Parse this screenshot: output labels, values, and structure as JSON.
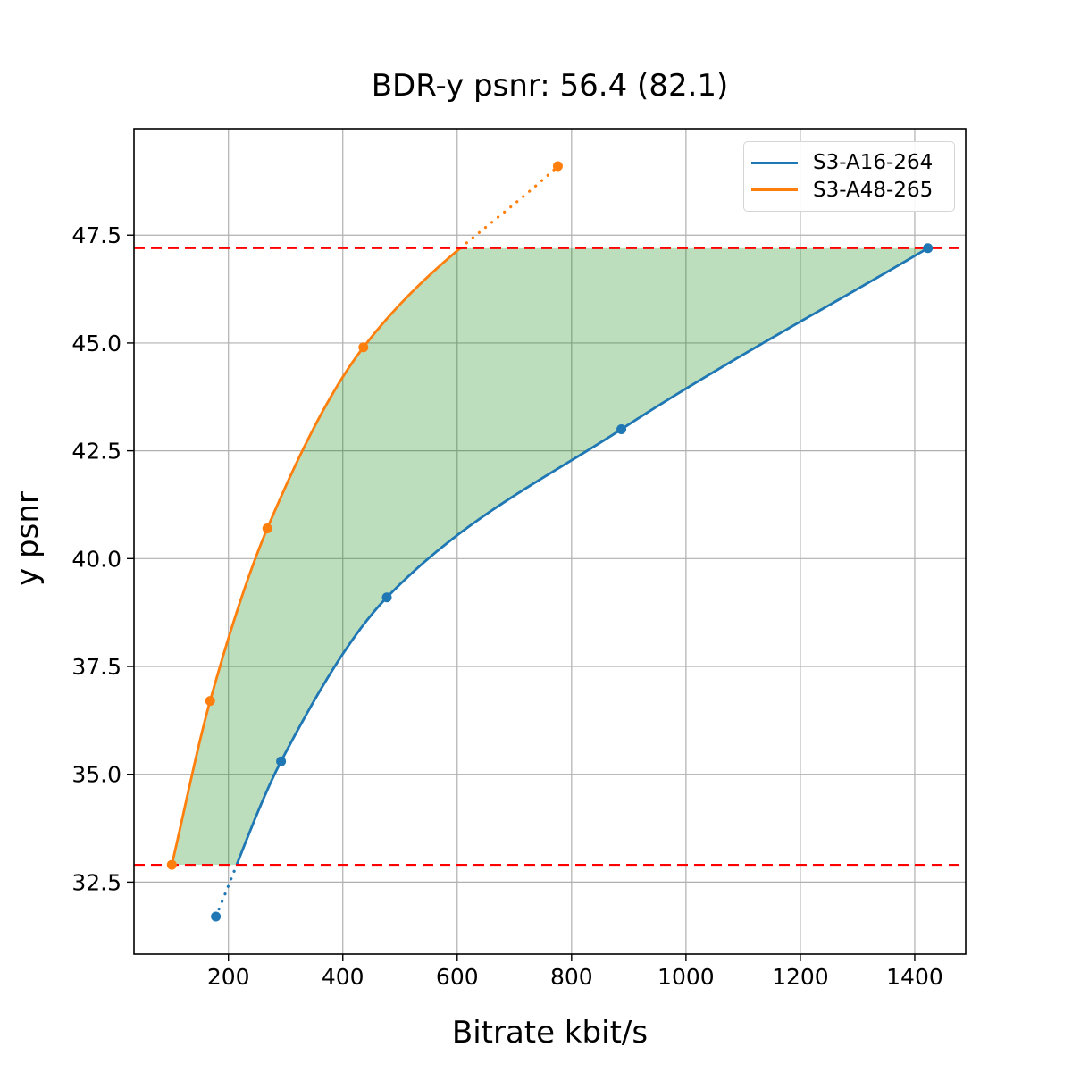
{
  "figure": {
    "background": "#ffffff"
  },
  "chart_data": {
    "type": "line",
    "title": "BDR-y psnr: 56.4 (82.1)",
    "xlabel": "Bitrate kbit/s",
    "ylabel": "y psnr",
    "xlim": [
      34.9,
      1489.1
    ],
    "ylim": [
      30.83,
      49.97
    ],
    "x_ticks": [
      200,
      400,
      600,
      800,
      1000,
      1200,
      1400
    ],
    "y_ticks": [
      32.5,
      35.0,
      37.5,
      40.0,
      42.5,
      45.0,
      47.5
    ],
    "grid": true,
    "grid_color": "#b0b0b0",
    "legend_position": "upper right",
    "series": [
      {
        "name": "S3-A16-264",
        "color": "#1f77b4",
        "x": [
          178,
          292,
          477,
          887,
          1423
        ],
        "y": [
          31.7,
          35.3,
          39.1,
          43.0,
          47.2
        ]
      },
      {
        "name": "S3-A48-265",
        "color": "#ff7f0e",
        "x": [
          101,
          168,
          268,
          436,
          776
        ],
        "y": [
          32.9,
          36.7,
          40.7,
          44.9,
          49.1
        ]
      }
    ],
    "overlap_bounds": {
      "y_low": 32.9,
      "y_high": 47.2,
      "line_color": "#ff0000",
      "line_style": "dashed"
    },
    "shaded_region": {
      "between": [
        "S3-A48-265",
        "S3-A16-264"
      ],
      "fill_color": "#008000",
      "opacity": 0.26
    }
  }
}
